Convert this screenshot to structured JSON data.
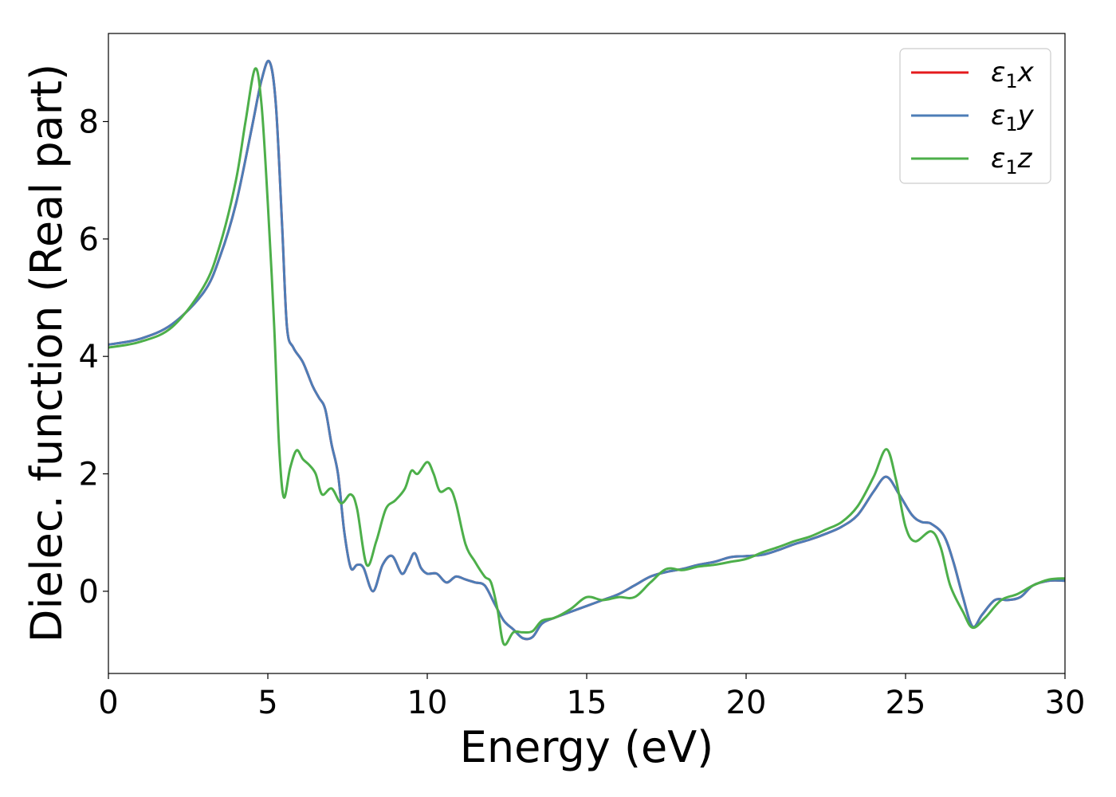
{
  "chart_data": {
    "type": "line",
    "xlabel": "Energy (eV)",
    "ylabel": "Dielec. function (Real part)",
    "xlim": [
      0,
      30
    ],
    "ylim": [
      -1.4,
      9.5
    ],
    "xticks": [
      0,
      5,
      10,
      15,
      20,
      25,
      30
    ],
    "yticks": [
      0,
      2,
      4,
      6,
      8
    ],
    "grid": false,
    "legend_position": "top-right",
    "series": [
      {
        "name": "ε1x",
        "legend": {
          "base": "ε",
          "sub": "1",
          "suffix": "x"
        },
        "color": "#e41a1c",
        "points": [
          [
            0,
            4.2
          ],
          [
            1,
            4.3
          ],
          [
            2,
            4.55
          ],
          [
            3,
            5.1
          ],
          [
            3.5,
            5.7
          ],
          [
            4,
            6.6
          ],
          [
            4.5,
            7.9
          ],
          [
            4.8,
            8.7
          ],
          [
            5.05,
            9.02
          ],
          [
            5.25,
            8.3
          ],
          [
            5.45,
            6.2
          ],
          [
            5.6,
            4.5
          ],
          [
            5.8,
            4.15
          ],
          [
            6.1,
            3.9
          ],
          [
            6.4,
            3.5
          ],
          [
            6.6,
            3.3
          ],
          [
            6.8,
            3.1
          ],
          [
            7.0,
            2.5
          ],
          [
            7.2,
            2.0
          ],
          [
            7.4,
            1.0
          ],
          [
            7.6,
            0.4
          ],
          [
            7.8,
            0.45
          ],
          [
            8.0,
            0.4
          ],
          [
            8.3,
            0.0
          ],
          [
            8.6,
            0.45
          ],
          [
            8.9,
            0.6
          ],
          [
            9.2,
            0.3
          ],
          [
            9.4,
            0.45
          ],
          [
            9.6,
            0.65
          ],
          [
            9.8,
            0.4
          ],
          [
            10.0,
            0.3
          ],
          [
            10.3,
            0.3
          ],
          [
            10.6,
            0.15
          ],
          [
            10.9,
            0.25
          ],
          [
            11.2,
            0.2
          ],
          [
            11.5,
            0.15
          ],
          [
            11.8,
            0.1
          ],
          [
            12.1,
            -0.2
          ],
          [
            12.4,
            -0.5
          ],
          [
            12.7,
            -0.65
          ],
          [
            13.0,
            -0.8
          ],
          [
            13.3,
            -0.78
          ],
          [
            13.6,
            -0.55
          ],
          [
            14.0,
            -0.45
          ],
          [
            14.5,
            -0.35
          ],
          [
            15.0,
            -0.25
          ],
          [
            15.5,
            -0.15
          ],
          [
            16.0,
            -0.05
          ],
          [
            16.5,
            0.1
          ],
          [
            17.0,
            0.25
          ],
          [
            17.5,
            0.33
          ],
          [
            18.0,
            0.38
          ],
          [
            18.5,
            0.45
          ],
          [
            19.0,
            0.5
          ],
          [
            19.5,
            0.58
          ],
          [
            20.0,
            0.6
          ],
          [
            20.5,
            0.62
          ],
          [
            21.0,
            0.7
          ],
          [
            21.5,
            0.8
          ],
          [
            22.0,
            0.88
          ],
          [
            22.5,
            0.98
          ],
          [
            23.0,
            1.1
          ],
          [
            23.5,
            1.3
          ],
          [
            24.0,
            1.7
          ],
          [
            24.4,
            1.95
          ],
          [
            24.8,
            1.65
          ],
          [
            25.2,
            1.3
          ],
          [
            25.5,
            1.18
          ],
          [
            25.8,
            1.15
          ],
          [
            26.2,
            0.95
          ],
          [
            26.5,
            0.5
          ],
          [
            26.8,
            -0.1
          ],
          [
            27.1,
            -0.6
          ],
          [
            27.4,
            -0.4
          ],
          [
            27.8,
            -0.15
          ],
          [
            28.2,
            -0.15
          ],
          [
            28.6,
            -0.1
          ],
          [
            29.0,
            0.1
          ],
          [
            29.5,
            0.18
          ],
          [
            30.0,
            0.18
          ]
        ]
      },
      {
        "name": "ε1y",
        "legend": {
          "base": "ε",
          "sub": "1",
          "suffix": "y"
        },
        "color": "#4d7db7",
        "points": [
          [
            0,
            4.2
          ],
          [
            1,
            4.3
          ],
          [
            2,
            4.55
          ],
          [
            3,
            5.1
          ],
          [
            3.5,
            5.7
          ],
          [
            4,
            6.6
          ],
          [
            4.5,
            7.9
          ],
          [
            4.8,
            8.7
          ],
          [
            5.05,
            9.02
          ],
          [
            5.25,
            8.3
          ],
          [
            5.45,
            6.2
          ],
          [
            5.6,
            4.5
          ],
          [
            5.8,
            4.15
          ],
          [
            6.1,
            3.9
          ],
          [
            6.4,
            3.5
          ],
          [
            6.6,
            3.3
          ],
          [
            6.8,
            3.1
          ],
          [
            7.0,
            2.5
          ],
          [
            7.2,
            2.0
          ],
          [
            7.4,
            1.0
          ],
          [
            7.6,
            0.4
          ],
          [
            7.8,
            0.45
          ],
          [
            8.0,
            0.4
          ],
          [
            8.3,
            0.0
          ],
          [
            8.6,
            0.45
          ],
          [
            8.9,
            0.6
          ],
          [
            9.2,
            0.3
          ],
          [
            9.4,
            0.45
          ],
          [
            9.6,
            0.65
          ],
          [
            9.8,
            0.4
          ],
          [
            10.0,
            0.3
          ],
          [
            10.3,
            0.3
          ],
          [
            10.6,
            0.15
          ],
          [
            10.9,
            0.25
          ],
          [
            11.2,
            0.2
          ],
          [
            11.5,
            0.15
          ],
          [
            11.8,
            0.1
          ],
          [
            12.1,
            -0.2
          ],
          [
            12.4,
            -0.5
          ],
          [
            12.7,
            -0.65
          ],
          [
            13.0,
            -0.8
          ],
          [
            13.3,
            -0.78
          ],
          [
            13.6,
            -0.55
          ],
          [
            14.0,
            -0.45
          ],
          [
            14.5,
            -0.35
          ],
          [
            15.0,
            -0.25
          ],
          [
            15.5,
            -0.15
          ],
          [
            16.0,
            -0.05
          ],
          [
            16.5,
            0.1
          ],
          [
            17.0,
            0.25
          ],
          [
            17.5,
            0.33
          ],
          [
            18.0,
            0.38
          ],
          [
            18.5,
            0.45
          ],
          [
            19.0,
            0.5
          ],
          [
            19.5,
            0.58
          ],
          [
            20.0,
            0.6
          ],
          [
            20.5,
            0.62
          ],
          [
            21.0,
            0.7
          ],
          [
            21.5,
            0.8
          ],
          [
            22.0,
            0.88
          ],
          [
            22.5,
            0.98
          ],
          [
            23.0,
            1.1
          ],
          [
            23.5,
            1.3
          ],
          [
            24.0,
            1.7
          ],
          [
            24.4,
            1.95
          ],
          [
            24.8,
            1.65
          ],
          [
            25.2,
            1.3
          ],
          [
            25.5,
            1.18
          ],
          [
            25.8,
            1.15
          ],
          [
            26.2,
            0.95
          ],
          [
            26.5,
            0.5
          ],
          [
            26.8,
            -0.1
          ],
          [
            27.1,
            -0.6
          ],
          [
            27.4,
            -0.4
          ],
          [
            27.8,
            -0.15
          ],
          [
            28.2,
            -0.15
          ],
          [
            28.6,
            -0.1
          ],
          [
            29.0,
            0.1
          ],
          [
            29.5,
            0.18
          ],
          [
            30.0,
            0.18
          ]
        ]
      },
      {
        "name": "ε1z",
        "legend": {
          "base": "ε",
          "sub": "1",
          "suffix": "z"
        },
        "color": "#4daf4a",
        "points": [
          [
            0,
            4.15
          ],
          [
            1,
            4.25
          ],
          [
            2,
            4.5
          ],
          [
            3,
            5.2
          ],
          [
            3.5,
            5.9
          ],
          [
            4,
            7.0
          ],
          [
            4.3,
            8.0
          ],
          [
            4.6,
            8.9
          ],
          [
            4.8,
            8.3
          ],
          [
            5.0,
            6.6
          ],
          [
            5.2,
            4.5
          ],
          [
            5.35,
            2.5
          ],
          [
            5.5,
            1.6
          ],
          [
            5.7,
            2.1
          ],
          [
            5.9,
            2.4
          ],
          [
            6.1,
            2.25
          ],
          [
            6.3,
            2.15
          ],
          [
            6.5,
            2.0
          ],
          [
            6.7,
            1.65
          ],
          [
            7.0,
            1.75
          ],
          [
            7.3,
            1.5
          ],
          [
            7.6,
            1.65
          ],
          [
            7.8,
            1.4
          ],
          [
            8.1,
            0.45
          ],
          [
            8.4,
            0.85
          ],
          [
            8.7,
            1.4
          ],
          [
            9.0,
            1.55
          ],
          [
            9.3,
            1.75
          ],
          [
            9.5,
            2.05
          ],
          [
            9.7,
            2.0
          ],
          [
            10.0,
            2.2
          ],
          [
            10.2,
            2.0
          ],
          [
            10.4,
            1.7
          ],
          [
            10.7,
            1.75
          ],
          [
            10.9,
            1.5
          ],
          [
            11.2,
            0.8
          ],
          [
            11.5,
            0.5
          ],
          [
            11.8,
            0.25
          ],
          [
            12.0,
            0.15
          ],
          [
            12.2,
            -0.3
          ],
          [
            12.4,
            -0.9
          ],
          [
            12.7,
            -0.7
          ],
          [
            13.0,
            -0.7
          ],
          [
            13.3,
            -0.68
          ],
          [
            13.6,
            -0.5
          ],
          [
            14.0,
            -0.45
          ],
          [
            14.5,
            -0.3
          ],
          [
            15.0,
            -0.1
          ],
          [
            15.5,
            -0.15
          ],
          [
            16.0,
            -0.1
          ],
          [
            16.5,
            -0.1
          ],
          [
            17.0,
            0.15
          ],
          [
            17.5,
            0.38
          ],
          [
            18.0,
            0.36
          ],
          [
            18.5,
            0.42
          ],
          [
            19.0,
            0.45
          ],
          [
            19.5,
            0.5
          ],
          [
            20.0,
            0.55
          ],
          [
            20.5,
            0.66
          ],
          [
            21.0,
            0.75
          ],
          [
            21.5,
            0.85
          ],
          [
            22.0,
            0.93
          ],
          [
            22.5,
            1.05
          ],
          [
            23.0,
            1.18
          ],
          [
            23.5,
            1.45
          ],
          [
            24.0,
            1.95
          ],
          [
            24.4,
            2.42
          ],
          [
            24.7,
            1.9
          ],
          [
            25.0,
            1.1
          ],
          [
            25.3,
            0.85
          ],
          [
            25.8,
            1.02
          ],
          [
            26.1,
            0.75
          ],
          [
            26.4,
            0.1
          ],
          [
            26.8,
            -0.35
          ],
          [
            27.1,
            -0.62
          ],
          [
            27.5,
            -0.45
          ],
          [
            28.0,
            -0.15
          ],
          [
            28.5,
            -0.05
          ],
          [
            29.0,
            0.1
          ],
          [
            29.5,
            0.2
          ],
          [
            30.0,
            0.22
          ]
        ]
      }
    ]
  }
}
